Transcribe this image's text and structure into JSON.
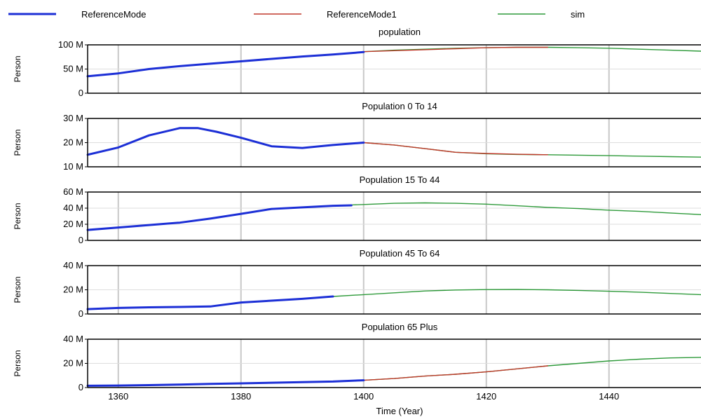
{
  "chart_data": {
    "type": "line",
    "xlabel": "Time (Year)",
    "x_ticks": [
      "1360",
      "1380",
      "1400",
      "1420",
      "1440"
    ],
    "xlim": [
      1355,
      1455
    ],
    "legend_position": "top",
    "legend": [
      {
        "name": "ReferenceMode",
        "color": "#1c2fd6"
      },
      {
        "name": "ReferenceMode1",
        "color": "#c0392b"
      },
      {
        "name": "sim",
        "color": "#2e9a3a"
      }
    ],
    "panels": [
      {
        "title": "population",
        "ylabel": "Person",
        "ylim": [
          0,
          100
        ],
        "y_ticks": [
          {
            "v": 0,
            "label": "0"
          },
          {
            "v": 50,
            "label": "50 M"
          },
          {
            "v": 100,
            "label": "100 M"
          }
        ],
        "series": {
          "ReferenceMode": [
            [
              1355,
              35
            ],
            [
              1360,
              41
            ],
            [
              1365,
              50
            ],
            [
              1370,
              56
            ],
            [
              1375,
              61
            ],
            [
              1380,
              66
            ],
            [
              1385,
              71
            ],
            [
              1390,
              76
            ],
            [
              1395,
              80
            ],
            [
              1400,
              85
            ]
          ],
          "ReferenceMode1": [
            [
              1400,
              86
            ],
            [
              1405,
              88
            ],
            [
              1410,
              90
            ],
            [
              1415,
              92
            ],
            [
              1420,
              94
            ],
            [
              1425,
              95
            ],
            [
              1430,
              95
            ]
          ],
          "sim": [
            [
              1400,
              86
            ],
            [
              1405,
              89
            ],
            [
              1410,
              91
            ],
            [
              1415,
              93
            ],
            [
              1420,
              94
            ],
            [
              1425,
              95
            ],
            [
              1430,
              95
            ],
            [
              1435,
              94
            ],
            [
              1440,
              93
            ],
            [
              1445,
              91
            ],
            [
              1450,
              89
            ],
            [
              1455,
              87
            ]
          ]
        }
      },
      {
        "title": "Population 0 To 14",
        "ylabel": "Person",
        "ylim": [
          10,
          30
        ],
        "y_ticks": [
          {
            "v": 10,
            "label": "10 M"
          },
          {
            "v": 20,
            "label": "20 M"
          },
          {
            "v": 30,
            "label": "30 M"
          }
        ],
        "series": {
          "ReferenceMode": [
            [
              1355,
              15
            ],
            [
              1360,
              18
            ],
            [
              1365,
              23
            ],
            [
              1370,
              26
            ],
            [
              1373,
              26
            ],
            [
              1376,
              24.5
            ],
            [
              1380,
              22
            ],
            [
              1385,
              18.5
            ],
            [
              1390,
              17.8
            ],
            [
              1395,
              19
            ],
            [
              1400,
              20
            ]
          ],
          "ReferenceMode1": [
            [
              1400,
              20
            ],
            [
              1405,
              19
            ],
            [
              1410,
              17.5
            ],
            [
              1415,
              16
            ],
            [
              1420,
              15.5
            ],
            [
              1425,
              15.2
            ],
            [
              1430,
              15
            ]
          ],
          "sim": [
            [
              1400,
              20
            ],
            [
              1405,
              19
            ],
            [
              1410,
              17.5
            ],
            [
              1415,
              16
            ],
            [
              1420,
              15.4
            ],
            [
              1425,
              15.1
            ],
            [
              1430,
              15
            ],
            [
              1435,
              14.8
            ],
            [
              1440,
              14.6
            ],
            [
              1445,
              14.4
            ],
            [
              1450,
              14.2
            ],
            [
              1455,
              14
            ]
          ]
        }
      },
      {
        "title": "Population 15 To 44",
        "ylabel": "Person",
        "ylim": [
          0,
          60
        ],
        "y_ticks": [
          {
            "v": 0,
            "label": "0"
          },
          {
            "v": 20,
            "label": "20 M"
          },
          {
            "v": 40,
            "label": "40 M"
          },
          {
            "v": 60,
            "label": "60 M"
          }
        ],
        "series": {
          "ReferenceMode": [
            [
              1355,
              13
            ],
            [
              1360,
              16
            ],
            [
              1365,
              19
            ],
            [
              1370,
              22
            ],
            [
              1375,
              27
            ],
            [
              1380,
              33
            ],
            [
              1385,
              39
            ],
            [
              1390,
              41
            ],
            [
              1395,
              43
            ],
            [
              1398,
              43.5
            ]
          ],
          "ReferenceMode1": [],
          "sim": [
            [
              1398,
              44
            ],
            [
              1400,
              44.5
            ],
            [
              1405,
              46
            ],
            [
              1410,
              46.5
            ],
            [
              1415,
              46
            ],
            [
              1420,
              45
            ],
            [
              1425,
              43
            ],
            [
              1430,
              41
            ],
            [
              1435,
              39.5
            ],
            [
              1440,
              37.5
            ],
            [
              1445,
              36
            ],
            [
              1450,
              34
            ],
            [
              1455,
              32
            ]
          ]
        }
      },
      {
        "title": "Population 45 To 64",
        "ylabel": "Person",
        "ylim": [
          0,
          40
        ],
        "y_ticks": [
          {
            "v": 0,
            "label": "0"
          },
          {
            "v": 20,
            "label": "20 M"
          },
          {
            "v": 40,
            "label": "40 M"
          }
        ],
        "series": {
          "ReferenceMode": [
            [
              1355,
              4
            ],
            [
              1360,
              5
            ],
            [
              1365,
              5.5
            ],
            [
              1370,
              5.8
            ],
            [
              1375,
              6.2
            ],
            [
              1380,
              9.5
            ],
            [
              1385,
              11
            ],
            [
              1390,
              12.5
            ],
            [
              1395,
              14.5
            ]
          ],
          "ReferenceMode1": [],
          "sim": [
            [
              1395,
              14.5
            ],
            [
              1400,
              16
            ],
            [
              1405,
              17.5
            ],
            [
              1410,
              19
            ],
            [
              1415,
              19.8
            ],
            [
              1420,
              20.2
            ],
            [
              1425,
              20.3
            ],
            [
              1430,
              20
            ],
            [
              1435,
              19.5
            ],
            [
              1440,
              18.8
            ],
            [
              1445,
              18
            ],
            [
              1450,
              17
            ],
            [
              1455,
              16
            ]
          ]
        }
      },
      {
        "title": "Population 65 Plus",
        "ylabel": "Person",
        "ylim": [
          0,
          40
        ],
        "y_ticks": [
          {
            "v": 0,
            "label": "0"
          },
          {
            "v": 20,
            "label": "20 M"
          },
          {
            "v": 40,
            "label": "40 M"
          }
        ],
        "series": {
          "ReferenceMode": [
            [
              1355,
              1.5
            ],
            [
              1360,
              1.7
            ],
            [
              1365,
              2
            ],
            [
              1370,
              2.5
            ],
            [
              1375,
              3
            ],
            [
              1380,
              3.5
            ],
            [
              1385,
              4
            ],
            [
              1390,
              4.5
            ],
            [
              1395,
              5
            ],
            [
              1400,
              6
            ]
          ],
          "ReferenceMode1": [
            [
              1400,
              6
            ],
            [
              1405,
              7.5
            ],
            [
              1410,
              9.5
            ],
            [
              1415,
              11
            ],
            [
              1420,
              13
            ],
            [
              1425,
              15.5
            ],
            [
              1430,
              18
            ]
          ],
          "sim": [
            [
              1400,
              6
            ],
            [
              1405,
              7.5
            ],
            [
              1410,
              9.5
            ],
            [
              1415,
              11
            ],
            [
              1420,
              13
            ],
            [
              1425,
              15.5
            ],
            [
              1430,
              18
            ],
            [
              1435,
              20
            ],
            [
              1440,
              22
            ],
            [
              1445,
              23.5
            ],
            [
              1450,
              24.5
            ],
            [
              1455,
              25
            ]
          ]
        }
      }
    ]
  }
}
